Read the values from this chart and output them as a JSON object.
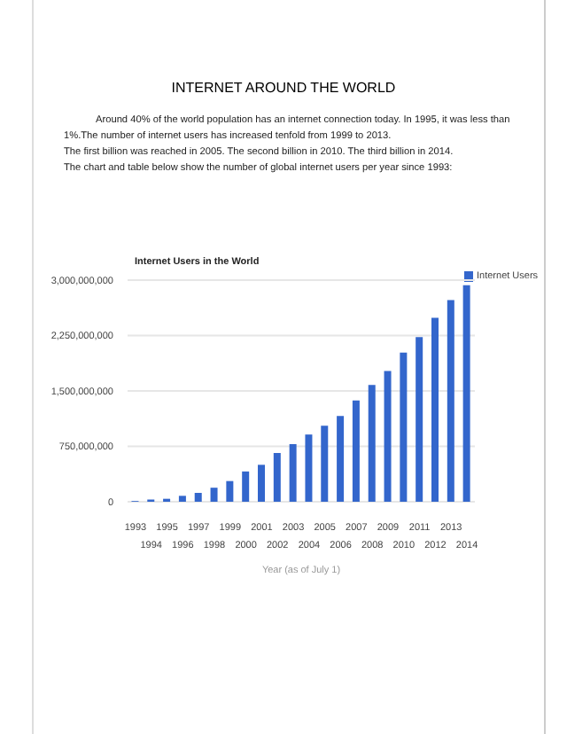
{
  "chart_data": {
    "type": "bar",
    "title": "INTERNET AROUND THE WORLD",
    "subtitle": "Internet Users in the World",
    "xlabel": "Year (as of July 1)",
    "annotations": [
      "Around 40% of the world population has an internet connection today. In 1995, it was less than 1%.The number of internet users has increased tenfold from 1999 to 2013.",
      "The first billion was reached in 2005. The second billion in 2010. The third billion in 2014.",
      "The chart and table below show the number of global internet users per year since 1993:"
    ],
    "categories": [
      "1993",
      "1994",
      "1995",
      "1996",
      "1997",
      "1998",
      "1999",
      "2000",
      "2001",
      "2002",
      "2003",
      "2004",
      "2005",
      "2006",
      "2007",
      "2008",
      "2009",
      "2010",
      "2011",
      "2012",
      "2013",
      "2014"
    ],
    "series": [
      {
        "name": "Internet Users",
        "color": "#3366cc",
        "values": [
          10000000,
          30000000,
          40000000,
          80000000,
          120000000,
          190000000,
          280000000,
          410000000,
          500000000,
          660000000,
          780000000,
          910000000,
          1030000000,
          1160000000,
          1370000000,
          1580000000,
          1770000000,
          2020000000,
          2230000000,
          2490000000,
          2730000000,
          2930000000
        ]
      }
    ],
    "ylim": [
      0,
      3000000000
    ],
    "yticks": [
      {
        "value": 0,
        "label": "0"
      },
      {
        "value": 750000000,
        "label": "750,000,000"
      },
      {
        "value": 1500000000,
        "label": "1,500,000,000"
      },
      {
        "value": 2250000000,
        "label": "2,250,000,000"
      },
      {
        "value": 3000000000,
        "label": "3,000,000,000"
      }
    ],
    "grid": "y",
    "legend": "top right"
  }
}
